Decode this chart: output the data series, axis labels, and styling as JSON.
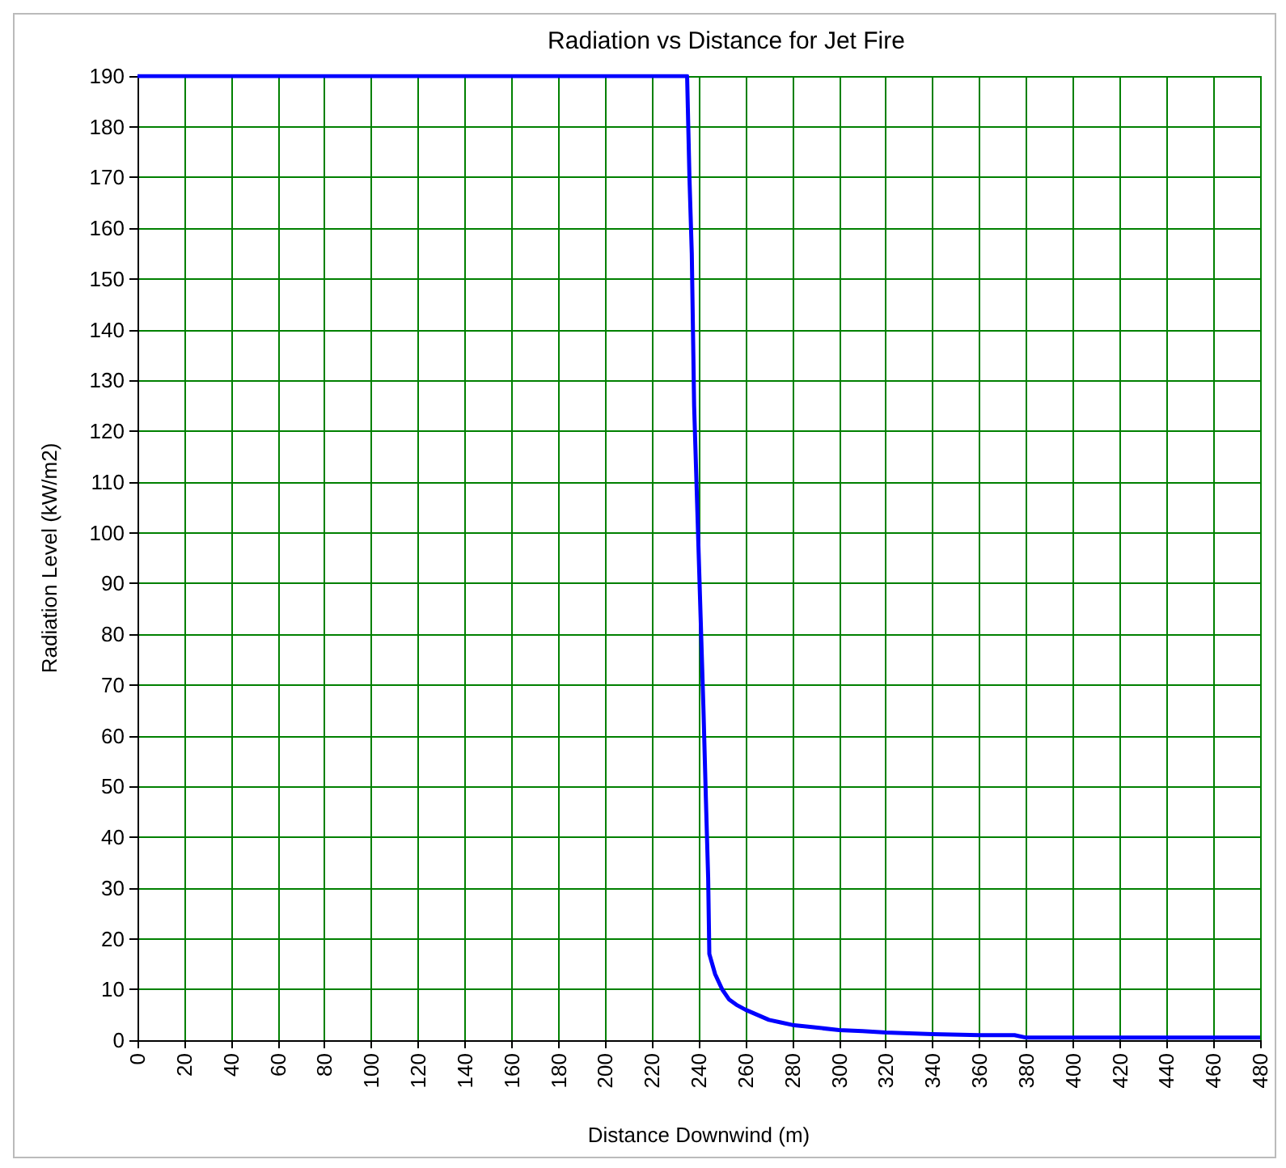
{
  "chart_data": {
    "type": "line",
    "title": "Radiation vs Distance for Jet Fire",
    "xlabel": "Distance Downwind (m)",
    "ylabel": "Radiation Level (kW/m2)",
    "x": [
      0,
      235,
      235.5,
      236,
      237,
      237.5,
      238,
      239,
      240,
      241,
      242,
      243,
      244,
      244.5,
      247,
      250,
      253,
      256,
      260,
      265,
      270,
      275,
      280,
      290,
      300,
      310,
      320,
      340,
      360,
      375,
      380,
      420,
      480
    ],
    "series": [
      {
        "color": "#0000ff",
        "values": [
          190,
          190,
          180,
          170,
          155,
          140,
          125,
          110,
          95,
          80,
          65,
          48,
          32,
          17,
          13,
          10,
          8,
          7,
          6,
          5,
          4,
          3.5,
          3,
          2.5,
          2,
          1.8,
          1.5,
          1.2,
          1,
          1,
          0.5,
          0.5,
          0.5
        ]
      }
    ],
    "xlim": [
      0,
      480
    ],
    "xticks": [
      0,
      20,
      40,
      60,
      80,
      100,
      120,
      140,
      160,
      180,
      200,
      220,
      240,
      260,
      280,
      300,
      320,
      340,
      360,
      380,
      400,
      420,
      440,
      460,
      480
    ],
    "ylim": [
      0,
      190
    ],
    "yticks": [
      0,
      10,
      20,
      30,
      40,
      50,
      60,
      70,
      80,
      90,
      100,
      110,
      120,
      130,
      140,
      150,
      160,
      170,
      180,
      190
    ],
    "grid": true,
    "marker": "none",
    "line_style": "solid"
  }
}
